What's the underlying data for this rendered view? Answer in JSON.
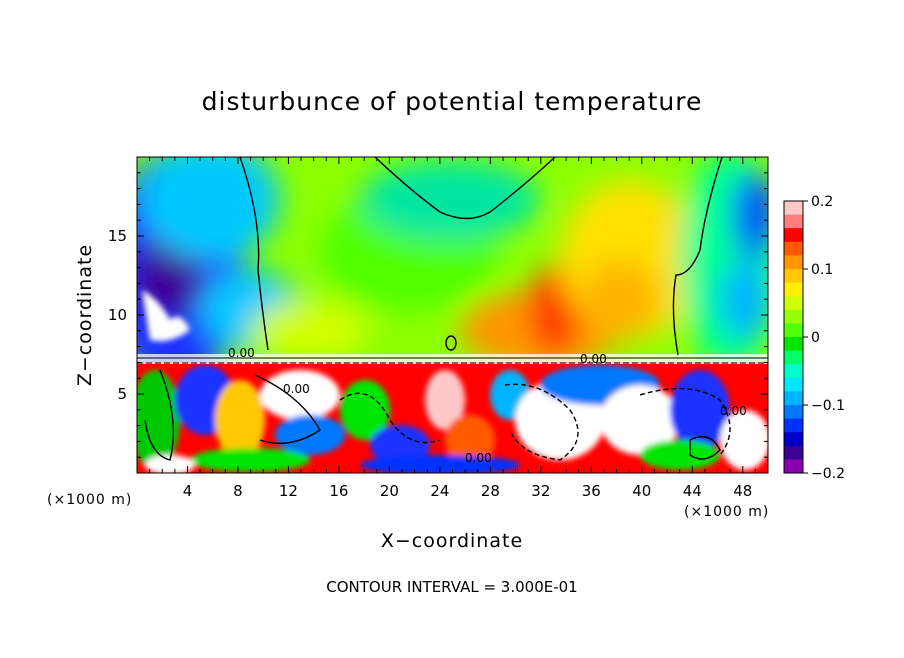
{
  "chart_data": {
    "type": "heatmap",
    "title": "disturbunce of potential temperature",
    "xlabel": "X−coordinate",
    "ylabel": "Z−coordinate",
    "x_unit_label": "(×1000 m)",
    "z_unit_label": "(×1000 m)",
    "xlim": [
      0,
      50
    ],
    "ylim": [
      0,
      20
    ],
    "x_ticks": [
      4,
      8,
      12,
      16,
      20,
      24,
      28,
      32,
      36,
      40,
      44,
      48
    ],
    "y_ticks": [
      5,
      10,
      15
    ],
    "colorbar": {
      "range": [
        -0.2,
        0.2
      ],
      "ticks": [
        "0.2",
        "0.1",
        "0",
        "−0.1",
        "−0.2"
      ],
      "colors": [
        "#ffc8c8",
        "#ff7d7d",
        "#ff0000",
        "#ff5a00",
        "#ff9600",
        "#ffc800",
        "#fff000",
        "#d2ff00",
        "#96ff00",
        "#50ff00",
        "#00e600",
        "#00ff64",
        "#00ffc8",
        "#00e6ff",
        "#00b4ff",
        "#0078ff",
        "#0032ff",
        "#0000c8",
        "#3c0096",
        "#8c00b4"
      ]
    },
    "contour_labels": [
      "0.00",
      "0.00",
      "0.00",
      "0.00",
      "0.00"
    ],
    "contour_interval": "CONTOUR INTERVAL = 3.000E-01",
    "grid": false
  }
}
